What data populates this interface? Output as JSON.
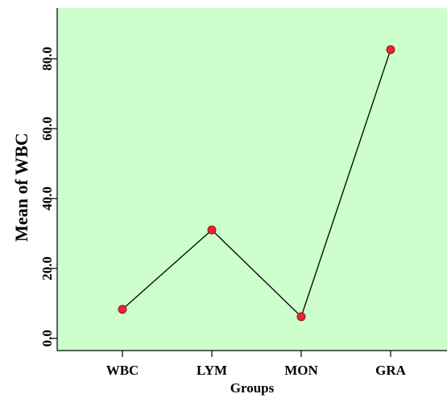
{
  "chart_data": {
    "type": "line",
    "categories": [
      "WBC",
      "LYM",
      "MON",
      "GRA"
    ],
    "values": [
      8.3,
      31.0,
      6.2,
      82.6
    ],
    "title": "",
    "xlabel": "Groups",
    "ylabel": "Mean of WBC",
    "ylim": [
      -3.5,
      94.5
    ],
    "yticks": [
      0.0,
      20.0,
      40.0,
      60.0,
      80.0
    ],
    "ytick_labels": [
      "0.0",
      "20.0",
      "40.0",
      "60.0",
      "80.0"
    ],
    "grid": false,
    "legend": "none",
    "colors": {
      "plot_background": "#ccffcc",
      "line": "#000000",
      "marker_fill": "#ee2233",
      "marker_stroke": "#8b1a1a"
    }
  }
}
